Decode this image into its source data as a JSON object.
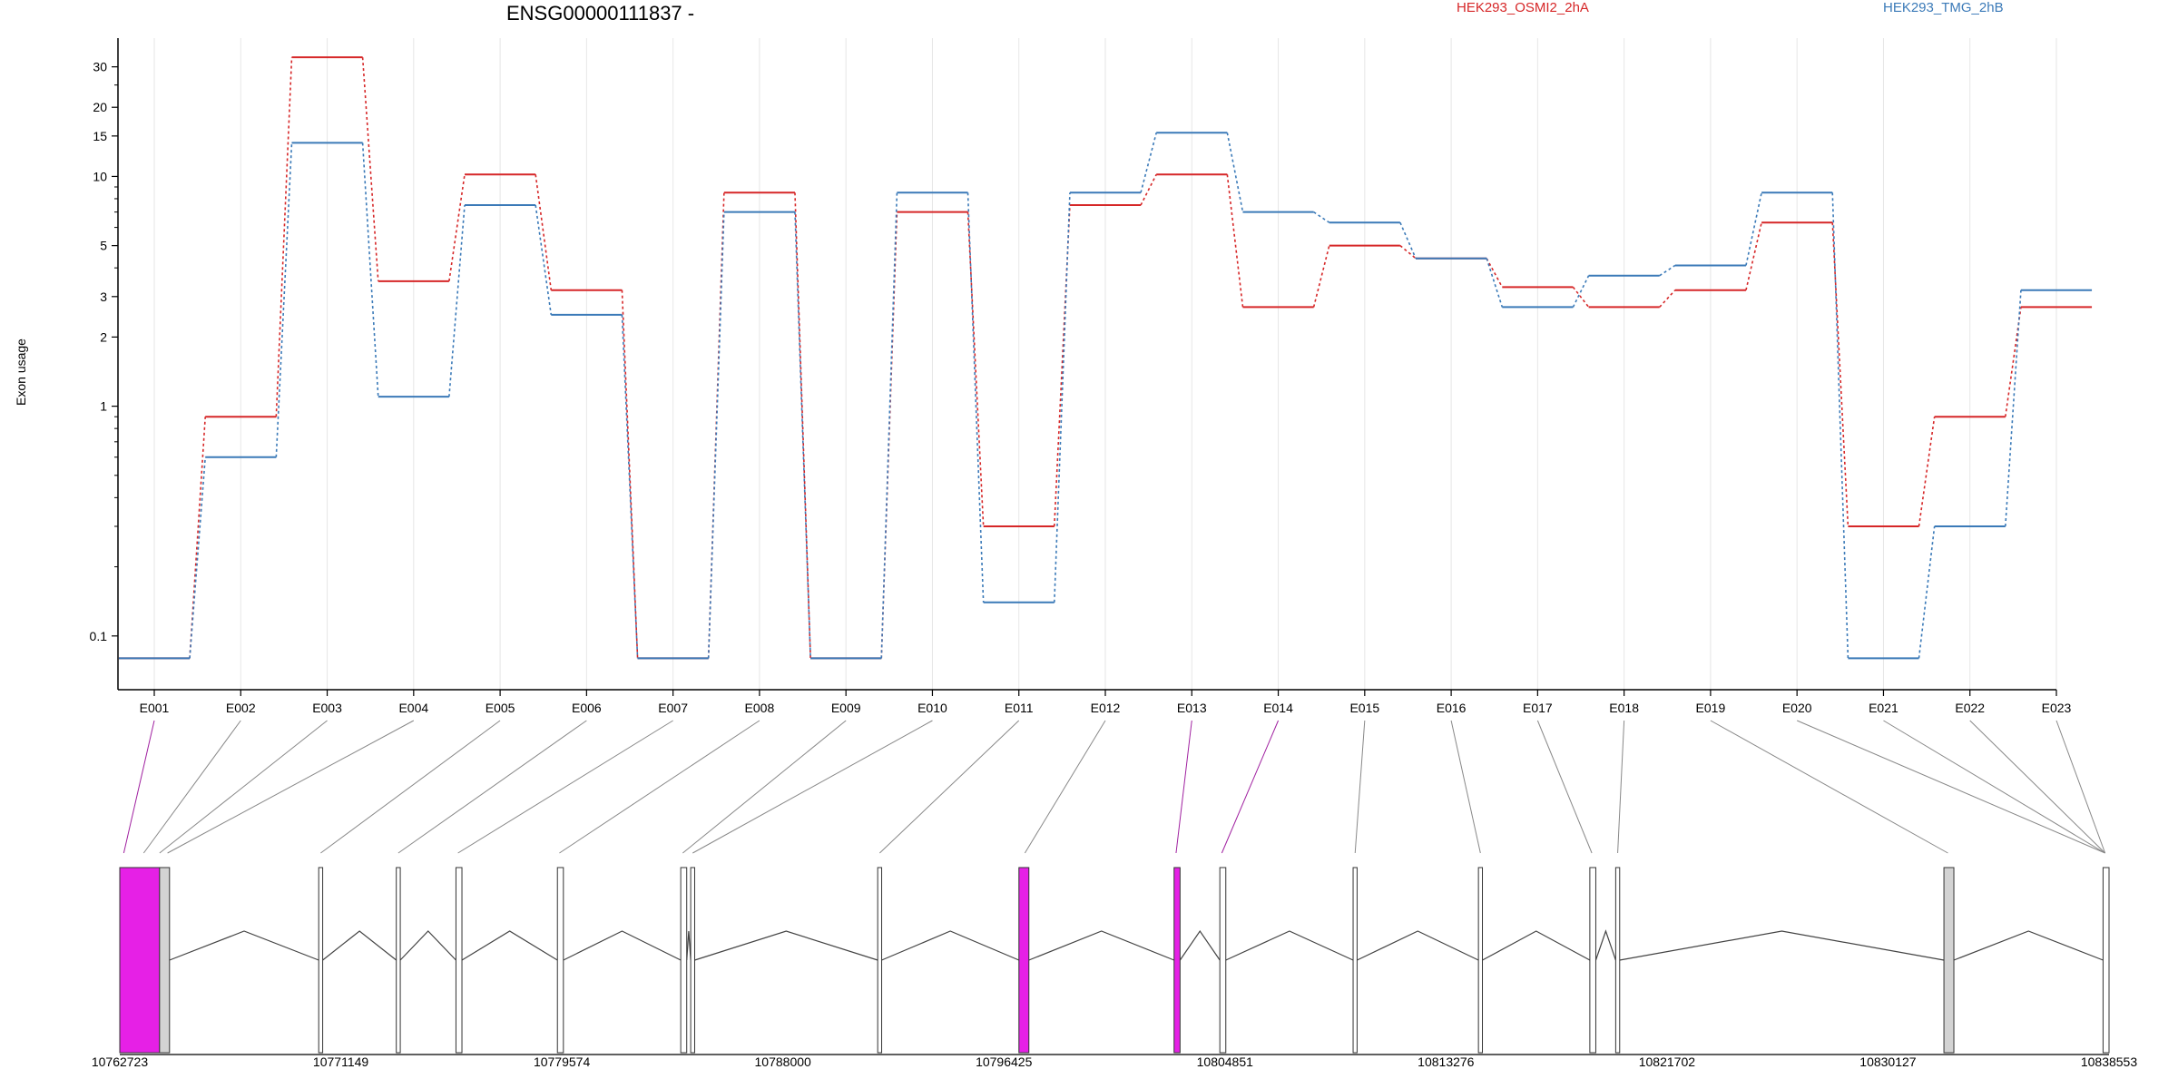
{
  "chart_data": {
    "type": "line",
    "title": "ENSG00000111837 -",
    "ylabel": "Exon usage",
    "xlabel": "",
    "yscale": "log",
    "ylim": [
      0.07,
      40
    ],
    "yticks": [
      0.1,
      1,
      2,
      3,
      5,
      10,
      15,
      20,
      30
    ],
    "ytick_labels": [
      "0.1",
      "1",
      "2",
      "3",
      "5",
      "10",
      "15",
      "20",
      "30"
    ],
    "categories": [
      "E001",
      "E002",
      "E003",
      "E004",
      "E005",
      "E006",
      "E007",
      "E008",
      "E009",
      "E010",
      "E011",
      "E012",
      "E013",
      "E014",
      "E015",
      "E016",
      "E017",
      "E018",
      "E019",
      "E020",
      "E021",
      "E022",
      "E023"
    ],
    "series": [
      {
        "name": "HEK293_OSMI2_2hA",
        "color": "#d62728",
        "values": [
          0.08,
          0.9,
          33,
          3.5,
          10.2,
          3.2,
          0.08,
          8.5,
          0.08,
          7,
          0.3,
          7.5,
          10.2,
          2.7,
          5,
          4.4,
          3.3,
          2.7,
          3.2,
          6.3,
          0.3,
          0.9,
          2.7
        ]
      },
      {
        "name": "HEK293_TMG_2hB",
        "color": "#3b7ab8",
        "values": [
          0.08,
          0.6,
          14,
          1.1,
          7.5,
          2.5,
          0.08,
          7,
          0.08,
          8.5,
          0.14,
          8.5,
          15.5,
          7,
          6.3,
          4.4,
          2.7,
          3.7,
          4.1,
          8.5,
          0.08,
          0.3,
          3.2
        ]
      }
    ],
    "gene_model": {
      "coordinate_labels": [
        "10762723",
        "10771149",
        "10779574",
        "10788000",
        "10796425",
        "10804851",
        "10813276",
        "10821702",
        "10830127",
        "10838553"
      ],
      "highlight_color": "#e620e6",
      "exon_fill": "#d3d3d3",
      "highlighted_exons": [
        "E001",
        "E013",
        "E014"
      ]
    }
  }
}
